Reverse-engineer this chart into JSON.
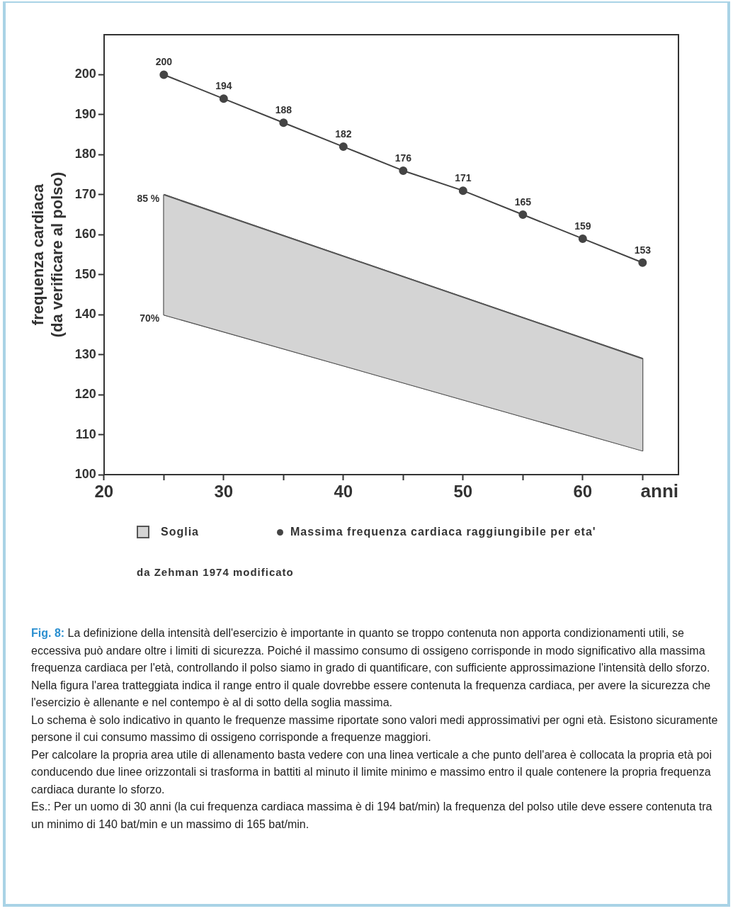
{
  "chart_data": {
    "type": "line",
    "ylabel": "frequenza cardiaca\n(da verificare al polso)",
    "xlabel": "anni",
    "xlim": [
      20,
      68
    ],
    "xticks": [
      20,
      {
        "value": 25,
        "label": null
      },
      30,
      {
        "value": 35,
        "label": null
      },
      40,
      {
        "value": 45,
        "label": null
      },
      50,
      {
        "value": 55,
        "label": null
      },
      60,
      {
        "value": 65,
        "label": null
      }
    ],
    "ylim": [
      100,
      210
    ],
    "yticks": [
      100,
      110,
      120,
      130,
      140,
      150,
      160,
      170,
      180,
      190,
      200
    ],
    "series": [
      {
        "name": "Soglia",
        "type": "area",
        "color": "#d4d4d4",
        "x": [
          25,
          65
        ],
        "values": [
          null,
          null
        ],
        "lower": [
          140,
          106
        ],
        "upper": [
          170,
          129
        ]
      },
      {
        "name": "Massima frequenza cardiaca raggiungibile per eta'",
        "type": "line",
        "value_labels": [
          "200",
          "194",
          "188",
          "182",
          "176",
          "171",
          "165",
          "159",
          "153"
        ],
        "color": "#444444",
        "x": [
          25,
          30,
          35,
          40,
          45,
          50,
          55,
          60,
          65
        ],
        "values": [
          200,
          194,
          188,
          182,
          176,
          171,
          165,
          159,
          153
        ]
      }
    ],
    "marker": "circle",
    "line_style": "solid",
    "grid": false,
    "legend": "bottom",
    "annotations": [
      {
        "text": "85 %",
        "x": 25,
        "y": 170
      },
      {
        "text": "70%",
        "x": 25,
        "y": 140
      },
      "da Zehman 1974 modificato",
      "Fig. 8: La definizione della intensità dell'esercizio è importante in quanto se troppo contenuta non apporta condizionamenti utili, se eccessiva può andare oltre i limiti di sicurezza. Poiché il massimo consumo di ossigeno corrisponde in modo significativo alla massima frequenza cardiaca per l'età, controllando il polso siamo in grado di quantificare, con sufficiente approssimazione l'intensità dello sforzo.",
      "Nella figura l'area tratteggiata indica il range entro il quale dovrebbe essere contenuta la frequenza cardiaca, per avere la sicurezza che l'esercizio è allenante e nel contempo è al di sotto della soglia massima.",
      "Lo schema è solo indicativo in quanto le frequenze massime riportate sono valori medi approssimativi per ogni età. Esistono sicuramente persone il cui consumo massimo di ossigeno corrisponde a frequenze maggiori.",
      "Per calcolare la propria area utile di allenamento basta vedere con una linea verticale a che punto dell'area è collocata la propria età poi conducendo due linee orizzontali si trasforma in battiti al minuto il limite minimo e massimo entro il quale contenere la propria frequenza cardiaca durante lo sforzo.",
      "Es.: Per un uomo di 30 anni (la cui frequenza cardiaca massima è di 194 bat/min) la frequenza del polso utile deve essere contenuta tra un minimo di 140 bat/min e un massimo di 165 bat/min."
    ]
  }
}
